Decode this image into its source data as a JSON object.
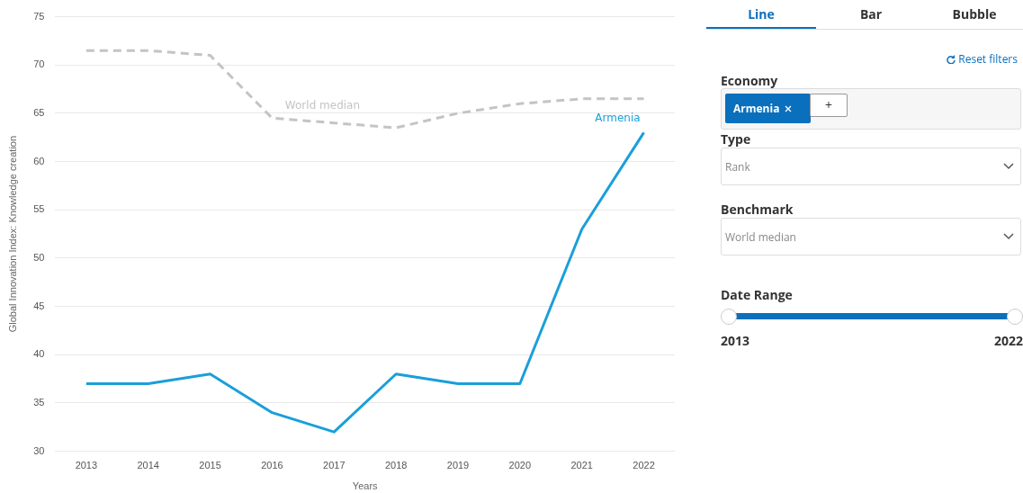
{
  "chart_data": [
    {
      "type": "line",
      "xlabel": "Years",
      "ylabel": "Global Innovation Index: Knowledge creation",
      "categories": [
        "2013",
        "2014",
        "2015",
        "2016",
        "2017",
        "2018",
        "2019",
        "2020",
        "2021",
        "2022"
      ],
      "series": [
        {
          "name": "Armenia",
          "color": "#1a9fd9",
          "line_style": "solid",
          "values": [
            37,
            37,
            38,
            34,
            32,
            38,
            37,
            37,
            53,
            63
          ]
        },
        {
          "name": "World median",
          "color": "#c4c4c4",
          "line_style": "dashed",
          "values": [
            71.5,
            71.5,
            71,
            64.5,
            64,
            63.5,
            65,
            66,
            66.5,
            66.5
          ]
        }
      ],
      "ylim": [
        30,
        75
      ],
      "yticks": [
        30,
        35,
        40,
        45,
        50,
        55,
        60,
        65,
        70,
        75
      ],
      "grid": "y",
      "legend": false,
      "marker": "none"
    },
    {
      "type": "other",
      "annotations": [
        "Line",
        "Bar",
        "Bubble",
        "Reset filters",
        "Economy",
        "Armenia",
        "+",
        "Type",
        "Rank",
        "Benchmark",
        "World median",
        "Date Range",
        "2013",
        "2022"
      ]
    }
  ]
}
